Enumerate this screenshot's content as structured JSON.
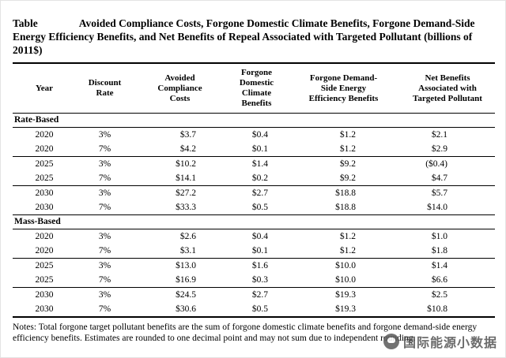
{
  "title": {
    "label": "Table",
    "caption": "Avoided Compliance Costs, Forgone Domestic Climate Benefits, Forgone Demand-Side Energy Efficiency Benefits, and Net Benefits of Repeal Associated with Targeted Pollutant (billions of 2011$)"
  },
  "table": {
    "columns": [
      "Year",
      "Discount\nRate",
      "Avoided\nCompliance\nCosts",
      "Forgone\nDomestic\nClimate\nBenefits",
      "Forgone Demand-\nSide Energy\nEfficiency Benefits",
      "Net Benefits\nAssociated with\nTargeted Pollutant"
    ],
    "sections": [
      {
        "label": "Rate-Based",
        "groups": [
          [
            [
              "2020",
              "3%",
              "$3.7",
              "$0.4",
              "$1.2",
              "$2.1"
            ],
            [
              "2020",
              "7%",
              "$4.2",
              "$0.1",
              "$1.2",
              "$2.9"
            ]
          ],
          [
            [
              "2025",
              "3%",
              "$10.2",
              "$1.4",
              "$9.2",
              "($0.4)"
            ],
            [
              "2025",
              "7%",
              "$14.1",
              "$0.2",
              "$9.2",
              "$4.7"
            ]
          ],
          [
            [
              "2030",
              "3%",
              "$27.2",
              "$2.7",
              "$18.8",
              "$5.7"
            ],
            [
              "2030",
              "7%",
              "$33.3",
              "$0.5",
              "$18.8",
              "$14.0"
            ]
          ]
        ]
      },
      {
        "label": "Mass-Based",
        "groups": [
          [
            [
              "2020",
              "3%",
              "$2.6",
              "$0.4",
              "$1.2",
              "$1.0"
            ],
            [
              "2020",
              "7%",
              "$3.1",
              "$0.1",
              "$1.2",
              "$1.8"
            ]
          ],
          [
            [
              "2025",
              "3%",
              "$13.0",
              "$1.6",
              "$10.0",
              "$1.4"
            ],
            [
              "2025",
              "7%",
              "$16.9",
              "$0.3",
              "$10.0",
              "$6.6"
            ]
          ],
          [
            [
              "2030",
              "3%",
              "$24.5",
              "$2.7",
              "$19.3",
              "$2.5"
            ],
            [
              "2030",
              "7%",
              "$30.6",
              "$0.5",
              "$19.3",
              "$10.8"
            ]
          ]
        ]
      }
    ]
  },
  "notes": "Notes: Total forgone target pollutant benefits are the sum of forgone domestic climate benefits and forgone demand-side energy efficiency benefits. Estimates are rounded to one decimal point and may not sum due to independent rounding.",
  "watermark": {
    "text": "国际能源小数据"
  }
}
